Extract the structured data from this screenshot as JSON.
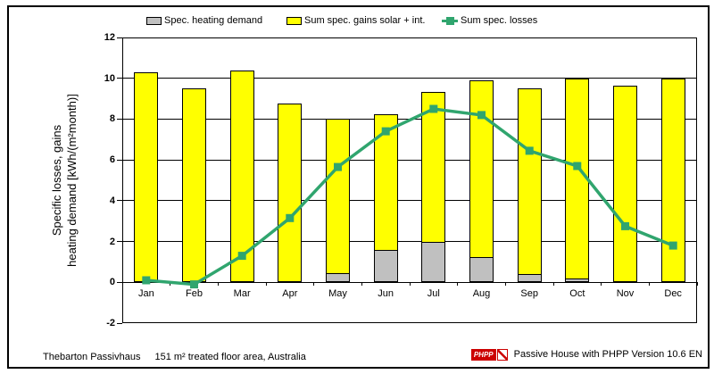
{
  "chart_data": {
    "type": "bar",
    "subtype": "stacked-bars-with-line-overlay",
    "title": "",
    "categories": [
      "Jan",
      "Feb",
      "Mar",
      "Apr",
      "May",
      "Jun",
      "Jul",
      "Aug",
      "Sep",
      "Oct",
      "Nov",
      "Dec"
    ],
    "series": [
      {
        "name": "Spec. heating demand",
        "type": "bar",
        "stack": "bottom",
        "color": "#C0C0C0",
        "values": [
          0,
          0,
          0,
          0,
          0.45,
          1.6,
          2.0,
          1.25,
          0.4,
          0.2,
          0,
          0
        ]
      },
      {
        "name": "Sum spec. gains solar + int.",
        "type": "bar",
        "stack": "top",
        "color": "#FFFF00",
        "values": [
          10.3,
          9.5,
          10.4,
          8.75,
          7.55,
          6.65,
          7.35,
          8.65,
          9.1,
          9.8,
          9.65,
          10.0
        ]
      },
      {
        "name": "Sum spec. losses",
        "type": "line",
        "marker": "square",
        "color": "#30A56E",
        "values": [
          0.1,
          -0.1,
          1.3,
          3.15,
          5.65,
          7.4,
          8.5,
          8.2,
          6.45,
          5.7,
          2.75,
          1.8
        ]
      }
    ],
    "stack_totals": [
      10.3,
      9.5,
      10.4,
      8.75,
      8.0,
      8.25,
      9.35,
      9.9,
      9.5,
      10.0,
      9.65,
      10.0
    ],
    "ylabel_line1": "Specific losses, gains",
    "ylabel_line2": "heating demand [kWh/(m²month)]",
    "xlabel": "",
    "ylim": [
      -2,
      12
    ],
    "yticks": [
      12,
      10,
      8,
      6,
      4,
      2,
      0,
      -2
    ],
    "grid": "horizontal",
    "legend_position": "top",
    "colors": {
      "demand": "#C0C0C0",
      "gains": "#FFFF00",
      "losses": "#30A56E",
      "axis": "#000000",
      "background": "#FFFFFF"
    }
  },
  "footer": {
    "project": "Thebarton Passivhaus",
    "area_note": "151 m² treated floor area, Australia",
    "logo": "PHPP",
    "credit": "Passive House with PHPP Version 10.6 EN"
  }
}
